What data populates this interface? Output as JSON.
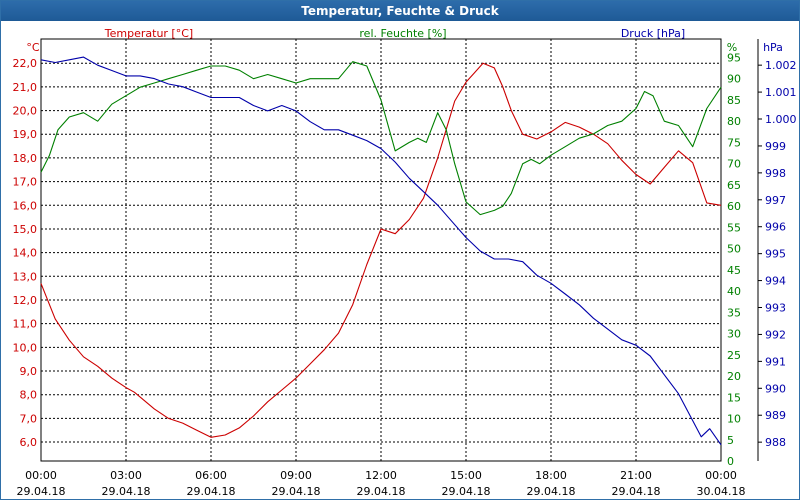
{
  "chart_data": {
    "type": "line",
    "title": "Temperatur, Feuchte & Druck",
    "x_ticks": [
      {
        "time": "00:00",
        "date": "29.04.18"
      },
      {
        "time": "03:00",
        "date": "29.04.18"
      },
      {
        "time": "06:00",
        "date": "29.04.18"
      },
      {
        "time": "09:00",
        "date": "29.04.18"
      },
      {
        "time": "12:00",
        "date": "29.04.18"
      },
      {
        "time": "15:00",
        "date": "29.04.18"
      },
      {
        "time": "18:00",
        "date": "29.04.18"
      },
      {
        "time": "21:00",
        "date": "29.04.18"
      },
      {
        "time": "00:00",
        "date": "30.04.18"
      }
    ],
    "xlim": [
      0,
      24
    ],
    "axes": {
      "temperature": {
        "label": "Temperatur [°C]",
        "unit": "°C",
        "color": "#cc0000",
        "ylim": [
          5.2,
          22.6
        ],
        "ticks": [
          "22,0",
          "21,0",
          "20,0",
          "19,0",
          "18,0",
          "17,0",
          "16,0",
          "15,0",
          "14,0",
          "13,0",
          "12,0",
          "11,0",
          "10,0",
          "9,0",
          "8,0",
          "7,0",
          "6,0"
        ]
      },
      "humidity": {
        "label": "rel. Feuchte [%]",
        "unit": "%",
        "color": "#008000",
        "ylim": [
          0,
          97
        ],
        "ticks": [
          "95",
          "90",
          "85",
          "80",
          "75",
          "70",
          "65",
          "60",
          "55",
          "50",
          "45",
          "40",
          "35",
          "30",
          "25",
          "20",
          "15",
          "10",
          "5",
          "0"
        ]
      },
      "pressure": {
        "label": "Druck [hPa]",
        "unit": "hPa",
        "color": "#0000aa",
        "ylim": [
          987.3,
          1002.6
        ],
        "ticks": [
          "1.002",
          "1.001",
          "1.000",
          "999",
          "998",
          "997",
          "996",
          "995",
          "994",
          "993",
          "992",
          "991",
          "990",
          "989",
          "988"
        ]
      }
    },
    "series": [
      {
        "name": "Temperatur",
        "axis": "temperature",
        "color": "#cc0000",
        "x": [
          0,
          0.5,
          1,
          1.5,
          2,
          2.5,
          3,
          3.3,
          3.6,
          4,
          4.5,
          5,
          5.5,
          6,
          6.5,
          7,
          7.5,
          8,
          8.5,
          9,
          9.5,
          10,
          10.5,
          11,
          11.5,
          12,
          12.5,
          13,
          13.5,
          14,
          14.3,
          14.6,
          15,
          15.3,
          15.6,
          16,
          16.3,
          16.6,
          17,
          17.5,
          18,
          18.5,
          19,
          19.5,
          20,
          20.5,
          21,
          21.5,
          22,
          22.5,
          23,
          23.5,
          24
        ],
        "values": [
          12.7,
          11.2,
          10.3,
          9.6,
          9.2,
          8.7,
          8.3,
          8.1,
          7.8,
          7.4,
          7.0,
          6.8,
          6.5,
          6.2,
          6.3,
          6.6,
          7.1,
          7.7,
          8.2,
          8.7,
          9.3,
          9.9,
          10.6,
          11.8,
          13.5,
          15.0,
          14.8,
          15.4,
          16.3,
          18.0,
          19.2,
          20.4,
          21.2,
          21.6,
          22.0,
          21.8,
          21.0,
          20.0,
          19.0,
          18.8,
          19.1,
          19.5,
          19.3,
          19.0,
          18.6,
          17.9,
          17.3,
          16.9,
          17.6,
          18.3,
          17.8,
          16.1,
          16.0
        ]
      },
      {
        "name": "rel. Feuchte",
        "axis": "humidity",
        "color": "#008000",
        "x": [
          0,
          0.3,
          0.6,
          1,
          1.5,
          2,
          2.5,
          3,
          3.5,
          4,
          4.5,
          5,
          5.5,
          6,
          6.5,
          7,
          7.5,
          8,
          8.5,
          9,
          9.5,
          10,
          10.5,
          11,
          11.5,
          12,
          12.5,
          13,
          13.3,
          13.6,
          14,
          14.3,
          14.6,
          15,
          15.5,
          16,
          16.3,
          16.6,
          17,
          17.3,
          17.6,
          18,
          18.5,
          19,
          19.5,
          20,
          20.5,
          21,
          21.3,
          21.6,
          22,
          22.5,
          23,
          23.5,
          24
        ],
        "values": [
          68,
          72,
          78,
          81,
          82,
          80,
          84,
          86,
          88,
          89,
          90,
          91,
          92,
          93,
          93,
          92,
          90,
          91,
          90,
          89,
          90,
          90,
          90,
          94,
          93,
          85,
          73,
          75,
          76,
          75,
          82,
          78,
          70,
          61,
          58,
          59,
          60,
          63,
          70,
          71,
          70,
          72,
          74,
          76,
          77,
          79,
          80,
          83,
          87,
          86,
          80,
          79,
          74,
          83,
          88
        ]
      },
      {
        "name": "Druck",
        "axis": "pressure",
        "color": "#0000aa",
        "x": [
          0,
          0.5,
          1,
          1.5,
          2,
          2.5,
          3,
          3.5,
          4,
          4.5,
          5,
          5.5,
          6,
          6.5,
          7,
          7.5,
          8,
          8.5,
          9,
          9.5,
          10,
          10.5,
          11,
          11.5,
          12,
          12.5,
          13,
          13.5,
          14,
          14.5,
          15,
          15.5,
          16,
          16.5,
          17,
          17.5,
          18,
          18.5,
          19,
          19.5,
          20,
          20.5,
          21,
          21.5,
          22,
          22.5,
          23,
          23.3,
          23.6,
          24
        ],
        "values": [
          1002.2,
          1002.1,
          1002.2,
          1002.3,
          1002.0,
          1001.8,
          1001.6,
          1001.6,
          1001.5,
          1001.3,
          1001.2,
          1001.0,
          1000.8,
          1000.8,
          1000.8,
          1000.5,
          1000.3,
          1000.5,
          1000.3,
          999.9,
          999.6,
          999.6,
          999.4,
          999.2,
          998.9,
          998.4,
          997.8,
          997.3,
          996.8,
          996.2,
          995.6,
          995.1,
          994.8,
          994.8,
          994.7,
          994.2,
          993.9,
          993.5,
          993.1,
          992.6,
          992.2,
          991.8,
          991.6,
          991.2,
          990.5,
          989.8,
          988.8,
          988.2,
          988.5,
          987.9
        ]
      }
    ]
  }
}
